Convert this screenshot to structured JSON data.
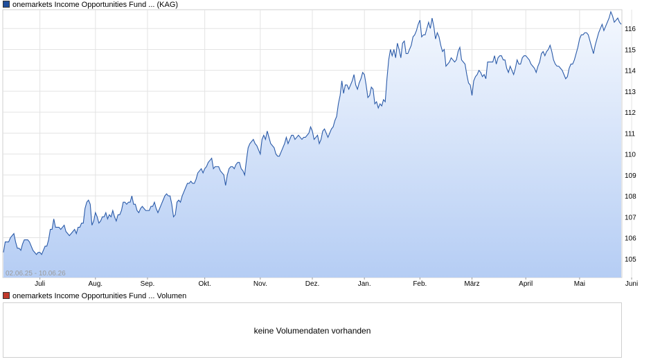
{
  "legend": {
    "price_label": "onemarkets Income Opportunities Fund ...  (KAG)",
    "price_color": "#1f4e9c",
    "volume_label": "onemarkets Income Opportunities Fund ... Volumen",
    "volume_color": "#c0392b"
  },
  "date_range": "02.06.25 - 10.06.26",
  "volume_panel": {
    "message": "keine Volumendaten vorhanden"
  },
  "chart_data": {
    "type": "area",
    "title": "",
    "xlabel": "",
    "ylabel": "",
    "ylim": [
      104.1,
      116.9
    ],
    "y_ticks": [
      105,
      106,
      107,
      108,
      109,
      110,
      111,
      112,
      113,
      114,
      115,
      116
    ],
    "x_tick_labels": [
      "Juli",
      "Aug.",
      "Sep.",
      "Okt.",
      "Nov.",
      "Dez.",
      "Jan.",
      "Feb.",
      "März",
      "April",
      "Mai",
      "Juni"
    ],
    "x_tick_index": [
      21,
      53,
      83,
      116,
      148,
      178,
      208,
      240,
      270,
      301,
      332,
      362
    ],
    "grid": true,
    "line_color": "#2a5aa8",
    "fill_top_color": "#f4f8fe",
    "fill_bottom_color": "#b5cdf4",
    "series": [
      {
        "values": [
          105.3,
          105.8,
          105.8,
          105.8,
          106.0,
          106.1,
          106.2,
          105.8,
          105.5,
          105.5,
          105.4,
          105.7,
          105.9,
          105.9,
          105.9,
          105.8,
          105.6,
          105.4,
          105.3,
          105.2,
          105.3,
          105.3,
          105.2,
          105.4,
          105.6,
          105.6,
          105.9,
          106.4,
          106.4,
          106.9,
          106.5,
          106.5,
          106.5,
          106.4,
          106.5,
          106.6,
          106.3,
          106.2,
          106.1,
          106.2,
          106.3,
          106.4,
          106.2,
          106.5,
          106.5,
          106.7,
          106.7,
          107.4,
          107.7,
          107.8,
          107.6,
          106.6,
          106.8,
          107.2,
          107.0,
          106.7,
          106.8,
          107.0,
          107.0,
          107.2,
          106.9,
          107.1,
          107.0,
          107.3,
          107.0,
          106.8,
          107.1,
          107.1,
          107.3,
          107.7,
          107.7,
          107.6,
          107.7,
          107.7,
          108.0,
          107.6,
          107.6,
          107.3,
          107.2,
          107.4,
          107.5,
          107.4,
          107.3,
          107.3,
          107.3,
          107.5,
          107.5,
          107.7,
          107.4,
          107.2,
          107.4,
          107.6,
          107.8,
          108.0,
          108.1,
          108.0,
          108.0,
          107.6,
          107.0,
          107.1,
          107.7,
          107.8,
          107.7,
          108.0,
          108.2,
          108.4,
          108.6,
          108.6,
          108.7,
          108.6,
          108.6,
          108.8,
          109.1,
          109.2,
          109.3,
          109.1,
          109.3,
          109.4,
          109.6,
          109.7,
          109.8,
          109.3,
          109.4,
          109.4,
          109.4,
          109.2,
          109.1,
          109.0,
          108.5,
          109.0,
          109.3,
          109.4,
          109.4,
          109.3,
          109.5,
          109.6,
          109.6,
          109.3,
          109.2,
          109.0,
          109.7,
          110.3,
          110.5,
          110.6,
          110.7,
          110.5,
          110.4,
          110.2,
          110.0,
          110.7,
          110.9,
          110.7,
          111.1,
          110.8,
          110.5,
          110.4,
          110.3,
          110.0,
          109.9,
          109.9,
          110.1,
          110.3,
          110.5,
          110.8,
          110.5,
          110.7,
          110.9,
          110.9,
          110.7,
          110.8,
          110.9,
          110.8,
          110.7,
          110.8,
          110.8,
          110.9,
          111.0,
          111.3,
          111.1,
          110.7,
          110.8,
          110.9,
          110.5,
          110.7,
          111.1,
          111.2,
          111.0,
          110.8,
          111.0,
          111.2,
          111.3,
          111.6,
          111.8,
          112.4,
          112.8,
          113.5,
          112.9,
          113.3,
          113.3,
          113.1,
          113.3,
          113.5,
          113.8,
          113.3,
          113.1,
          113.4,
          113.6,
          113.9,
          113.8,
          113.3,
          112.7,
          112.8,
          113.2,
          113.1,
          112.4,
          112.5,
          112.2,
          112.4,
          112.3,
          112.6,
          112.5,
          113.6,
          114.5,
          115.0,
          114.7,
          115.0,
          114.6,
          115.3,
          115.0,
          114.6,
          115.3,
          115.4,
          114.8,
          114.8,
          115.0,
          115.2,
          115.6,
          115.7,
          115.9,
          116.2,
          116.4,
          115.6,
          115.7,
          115.7,
          116.0,
          116.3,
          116.0,
          116.5,
          116.1,
          115.5,
          115.8,
          115.6,
          115.2,
          114.9,
          115.0,
          114.2,
          114.3,
          114.4,
          114.6,
          114.5,
          114.4,
          114.5,
          114.9,
          115.1,
          114.5,
          114.4,
          114.3,
          113.8,
          113.4,
          113.3,
          112.8,
          113.5,
          113.7,
          113.8,
          114.0,
          113.9,
          113.7,
          113.8,
          113.6,
          114.4,
          114.4,
          114.4,
          114.4,
          114.7,
          114.3,
          114.6,
          114.7,
          114.7,
          114.5,
          114.5,
          114.1,
          113.9,
          114.2,
          114.0,
          113.8,
          114.1,
          114.5,
          114.3,
          114.3,
          114.6,
          114.7,
          114.7,
          114.6,
          114.5,
          114.3,
          114.2,
          114.1,
          113.9,
          114.2,
          114.4,
          114.8,
          114.9,
          114.7,
          114.9,
          115.0,
          115.2,
          114.9,
          114.5,
          114.3,
          114.2,
          114.2,
          114.1,
          114.0,
          113.8,
          113.6,
          113.7,
          114.1,
          114.3,
          114.3,
          114.5,
          114.8,
          115.1,
          115.5,
          115.7,
          115.7,
          115.8,
          115.8,
          115.7,
          115.4,
          115.1,
          114.8,
          115.2,
          115.5,
          115.8,
          116.0,
          116.2,
          115.9,
          116.1,
          116.3,
          116.5,
          116.8,
          116.6,
          116.3,
          116.4,
          116.5,
          116.3,
          116.2
        ]
      }
    ]
  }
}
